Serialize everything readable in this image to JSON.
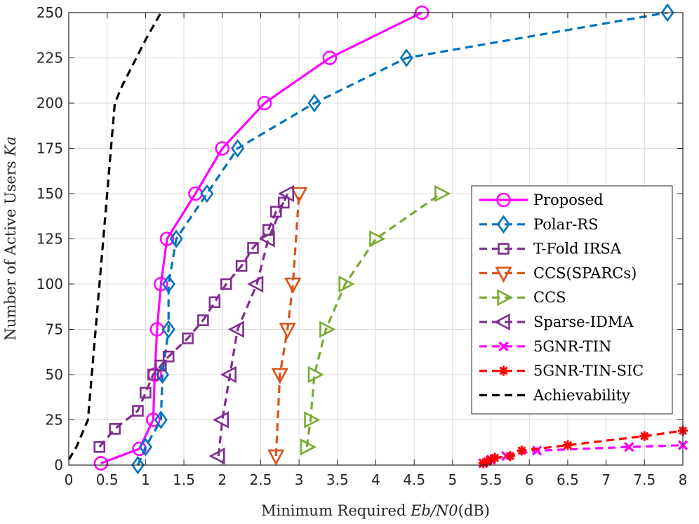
{
  "chart_data": {
    "type": "line",
    "title": "",
    "xlabel_prefix": "Minimum Required ",
    "xlabel_math": "Eb/N0",
    "xlabel_suffix": "(dB)",
    "ylabel_prefix": "Number of Active Users ",
    "ylabel_math": "Ka",
    "xlim": [
      0,
      8
    ],
    "ylim": [
      0,
      250
    ],
    "xticks": [
      0,
      0.5,
      1,
      1.5,
      2,
      2.5,
      3,
      3.5,
      4,
      4.5,
      5,
      5.5,
      6,
      6.5,
      7,
      7.5,
      8
    ],
    "xtick_labels": [
      "0",
      "0.5",
      "1",
      "1.5",
      "2",
      "2.5",
      "3",
      "3.5",
      "4",
      "4.5",
      "5",
      "5.5",
      "6",
      "6.5",
      "7",
      "7.5",
      "8"
    ],
    "yticks": [
      0,
      25,
      50,
      75,
      100,
      125,
      150,
      175,
      200,
      225,
      250
    ],
    "ytick_labels": [
      "0",
      "25",
      "50",
      "75",
      "100",
      "125",
      "150",
      "175",
      "200",
      "225",
      "250"
    ],
    "grid": true,
    "legend_position": "bottom-right",
    "series": [
      {
        "name": "Proposed",
        "color": "#ff00ff",
        "line": "solid",
        "marker": "circle",
        "x": [
          0.42,
          0.92,
          1.1,
          1.12,
          1.15,
          1.2,
          1.28,
          1.65,
          2.0,
          2.55,
          3.4,
          4.6
        ],
        "y": [
          1,
          9,
          25,
          50,
          75,
          100,
          125,
          150,
          175,
          200,
          225,
          250
        ]
      },
      {
        "name": "Polar-RS",
        "color": "#0072bd",
        "line": "dashed",
        "marker": "diamond",
        "x": [
          0.9,
          1.0,
          1.2,
          1.22,
          1.3,
          1.3,
          1.4,
          1.8,
          2.2,
          3.2,
          4.4,
          7.8
        ],
        "y": [
          0,
          10,
          25,
          50,
          75,
          100,
          125,
          150,
          175,
          200,
          225,
          250
        ]
      },
      {
        "name": "T-Fold IRSA",
        "color": "#7e2f8e",
        "line": "dashed",
        "marker": "square",
        "x": [
          0.4,
          0.6,
          0.9,
          1.0,
          1.1,
          1.2,
          1.3,
          1.55,
          1.75,
          1.9,
          2.05,
          2.25,
          2.4,
          2.6,
          2.7,
          2.8
        ],
        "y": [
          10,
          20,
          30,
          40,
          50,
          55,
          60,
          70,
          80,
          90,
          100,
          110,
          120,
          130,
          140,
          145
        ]
      },
      {
        "name": "CCS(SPARCs)",
        "color": "#d95319",
        "line": "dashed",
        "marker": "triangle-down",
        "x": [
          2.7,
          2.75,
          2.85,
          2.92,
          3.0
        ],
        "y": [
          5,
          50,
          75,
          100,
          150
        ]
      },
      {
        "name": "CCS",
        "color": "#77ac30",
        "line": "dashed",
        "marker": "triangle-right",
        "x": [
          3.1,
          3.15,
          3.2,
          3.35,
          3.6,
          4.0,
          4.85
        ],
        "y": [
          10,
          25,
          50,
          75,
          100,
          125,
          150
        ]
      },
      {
        "name": "Sparse-IDMA",
        "color": "#7e2f8e",
        "line": "dashed",
        "marker": "triangle-left",
        "x": [
          1.95,
          2.0,
          2.1,
          2.2,
          2.45,
          2.6,
          2.85
        ],
        "y": [
          5,
          25,
          50,
          75,
          100,
          125,
          150
        ]
      },
      {
        "name": "5GNR-TIN",
        "color": "#ff00ff",
        "line": "dashed",
        "marker": "x",
        "x": [
          5.4,
          5.5,
          5.7,
          6.1,
          7.3,
          8.0
        ],
        "y": [
          1,
          3,
          5,
          8,
          10,
          11
        ]
      },
      {
        "name": "5GNR-TIN-SIC",
        "color": "#ff0000",
        "line": "dashed",
        "marker": "asterisk",
        "x": [
          5.4,
          5.45,
          5.5,
          5.55,
          5.75,
          5.9,
          6.5,
          7.5,
          8.0
        ],
        "y": [
          1,
          2,
          3,
          4,
          5,
          8,
          11,
          16,
          19
        ]
      },
      {
        "name": "Achievability",
        "color": "#000000",
        "line": "dashed",
        "marker": "none",
        "x": [
          0.0,
          0.1,
          0.25,
          0.3,
          0.5,
          0.6,
          0.7,
          1.0,
          1.2
        ],
        "y": [
          3,
          10,
          25,
          50,
          150,
          200,
          210,
          235,
          250
        ]
      }
    ]
  }
}
